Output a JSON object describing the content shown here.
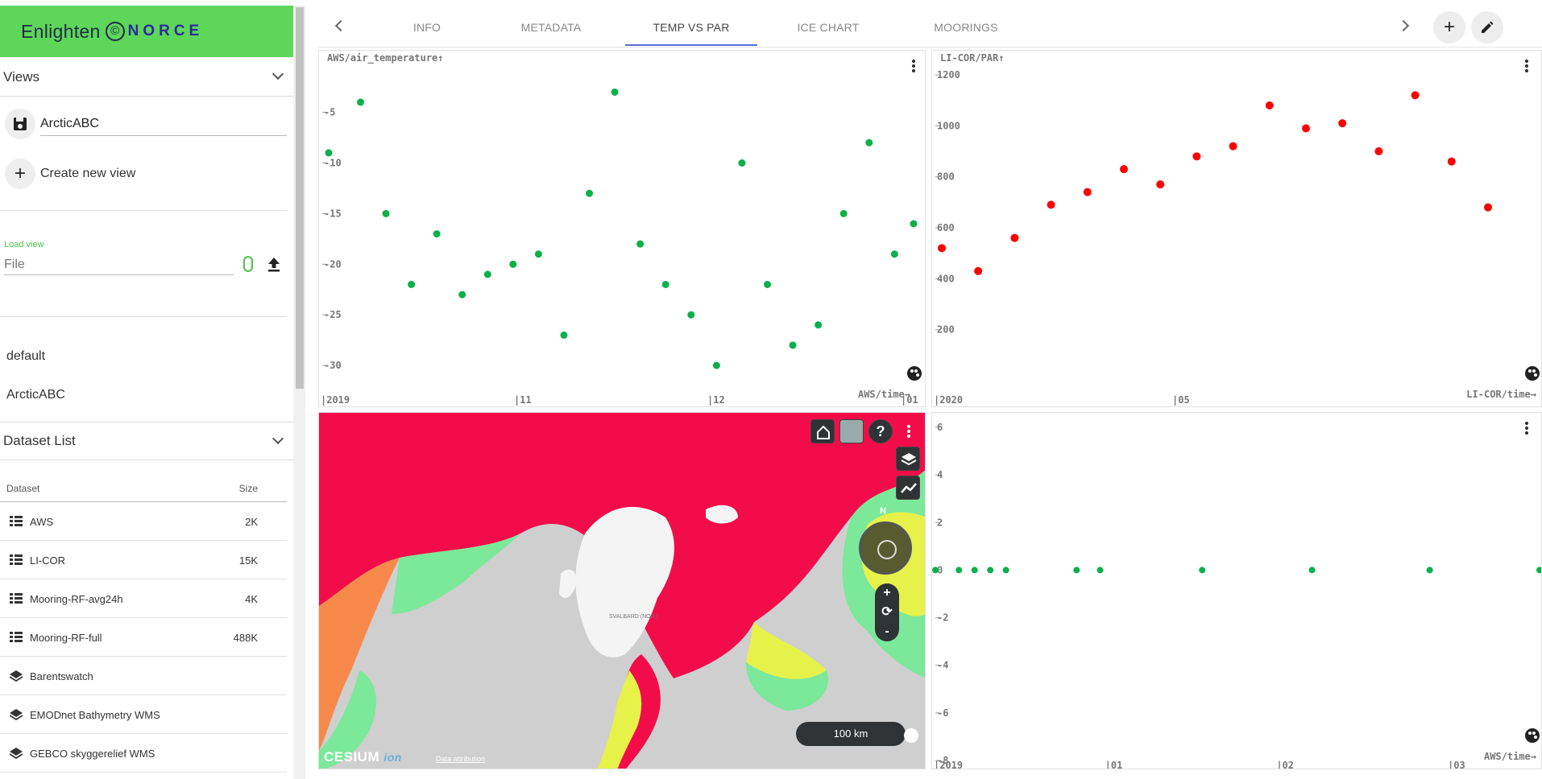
{
  "app": {
    "brand": "Enlighten",
    "brand_org": "NORCE"
  },
  "sidebar": {
    "views_title": "Views",
    "current_view": "ArcticABC",
    "create_view_label": "Create new view",
    "load_view_label": "Load view",
    "file_placeholder": "File",
    "saved_views": [
      "default",
      "ArcticABC"
    ],
    "dataset_list_title": "Dataset List",
    "dataset_col_name": "Dataset",
    "dataset_col_size": "Size",
    "datasets": [
      {
        "name": "AWS",
        "size": "2K",
        "icon": "list-icon"
      },
      {
        "name": "LI-COR",
        "size": "15K",
        "icon": "list-icon"
      },
      {
        "name": "Mooring-RF-avg24h",
        "size": "4K",
        "icon": "list-icon"
      },
      {
        "name": "Mooring-RF-full",
        "size": "488K",
        "icon": "list-icon"
      },
      {
        "name": "Barentswatch",
        "size": "",
        "icon": "layers-icon"
      },
      {
        "name": "EMODnet Bathymetry WMS",
        "size": "",
        "icon": "layers-icon"
      },
      {
        "name": "GEBCO skyggerelief WMS",
        "size": "",
        "icon": "layers-icon"
      }
    ]
  },
  "tabs": [
    {
      "label": "INFO",
      "active": false
    },
    {
      "label": "METADATA",
      "active": false
    },
    {
      "label": "TEMP VS PAR",
      "active": true
    },
    {
      "label": "ICE CHART",
      "active": false
    },
    {
      "label": "MOORINGS",
      "active": false
    }
  ],
  "colors": {
    "brand": "#5dd65a",
    "tab_active": "#5a6ad8",
    "temp_series": "#0bb04b",
    "par_series": "#ff0000",
    "ice_red": "#f20d4a",
    "ice_orange": "#f78a4b",
    "ice_yellow": "#e6f24a",
    "ice_green": "#7be89a"
  },
  "chart_data": [
    {
      "type": "scatter",
      "title": "AWS/air_temperature↑",
      "x_unit": "AWS/time→",
      "y_ticks": [
        "-5",
        "-10",
        "-15",
        "-20",
        "-25",
        "-30"
      ],
      "x_ticks": [
        "2019",
        "11",
        "12",
        "01"
      ],
      "ylim": [
        -31.5,
        -0.5
      ],
      "color": "#0bb04b",
      "x": [
        "2019-10-01",
        "2019-10-06",
        "2019-10-10",
        "2019-10-14",
        "2019-10-18",
        "2019-10-22",
        "2019-10-26",
        "2019-10-30",
        "2019-11-03",
        "2019-11-07",
        "2019-11-11",
        "2019-11-15",
        "2019-11-19",
        "2019-11-23",
        "2019-11-27",
        "2019-12-01",
        "2019-12-05",
        "2019-12-09",
        "2019-12-13",
        "2019-12-17",
        "2019-12-21",
        "2019-12-25",
        "2019-12-29",
        "2020-01-01"
      ],
      "y": [
        -9,
        -4,
        -15,
        -22,
        -17,
        -23,
        -21,
        -20,
        -19,
        -27,
        -13,
        -3,
        -18,
        -22,
        -25,
        -30,
        -10,
        -22,
        -28,
        -26,
        -15,
        -8,
        -19,
        -16
      ]
    },
    {
      "type": "scatter",
      "title": "LI-COR/PAR↑",
      "x_unit": "LI-COR/time→",
      "y_ticks": [
        "1200",
        "1000",
        "800",
        "600",
        "400",
        "200"
      ],
      "x_ticks": [
        "2020",
        "05"
      ],
      "ylim": [
        0,
        1200
      ],
      "color": "#ff0000",
      "x": [
        "2020-02-10",
        "2020-02-24",
        "2020-03-09",
        "2020-03-23",
        "2020-04-06",
        "2020-04-20",
        "2020-05-04",
        "2020-05-18",
        "2020-06-01",
        "2020-06-15",
        "2020-06-29",
        "2020-07-13",
        "2020-07-27",
        "2020-08-10",
        "2020-08-24",
        "2020-09-07"
      ],
      "y": [
        520,
        430,
        560,
        690,
        740,
        830,
        770,
        880,
        920,
        1080,
        990,
        1010,
        900,
        1120,
        860,
        680
      ]
    },
    {
      "type": "scatter",
      "title": "↑",
      "x_unit": "AWS/time→",
      "y_ticks": [
        "6",
        "4",
        "2",
        "0",
        "-2",
        "-4",
        "-6",
        "-8"
      ],
      "x_ticks": [
        "2019",
        "01",
        "02",
        "03"
      ],
      "ylim": [
        -8,
        6
      ],
      "color": "#0bb04b",
      "x": [
        "2019-12-29",
        "2020-01-01",
        "2020-01-03",
        "2020-01-05",
        "2020-01-07",
        "2020-01-16",
        "2020-01-19",
        "2020-02-01",
        "2020-02-15",
        "2020-03-01",
        "2020-03-15"
      ],
      "y": [
        0,
        0,
        0,
        0,
        0,
        0,
        0,
        0,
        0,
        0,
        0
      ]
    }
  ],
  "map": {
    "help_label": "?",
    "compass_label": "N",
    "zoom_in": "+",
    "zoom_reset": "⟳",
    "zoom_out": "-",
    "scale_label": "100 km",
    "logo_text": "CESIUM",
    "logo_suffix": "ion",
    "attribution": "Data attribution",
    "place_label": "SVALBARD (NOR.)"
  }
}
